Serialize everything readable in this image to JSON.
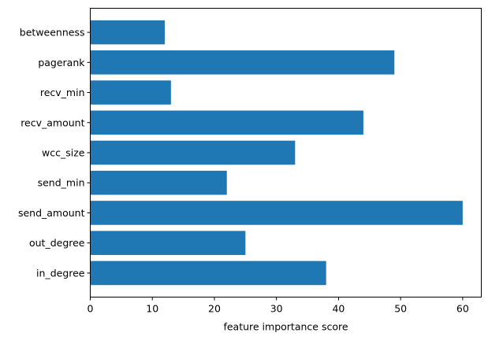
{
  "chart_data": {
    "type": "bar",
    "orientation": "horizontal",
    "categories": [
      "in_degree",
      "out_degree",
      "send_amount",
      "send_min",
      "wcc_size",
      "recv_amount",
      "recv_min",
      "pagerank",
      "betweenness"
    ],
    "values": [
      38,
      25,
      60,
      22,
      33,
      44,
      13,
      49,
      12
    ],
    "xlabel": "feature importance score",
    "ylabel": "",
    "xlim": [
      0,
      63
    ],
    "xticks": [
      0,
      10,
      20,
      30,
      40,
      50,
      60
    ],
    "grid": false,
    "bar_color": "#1f77b4"
  }
}
